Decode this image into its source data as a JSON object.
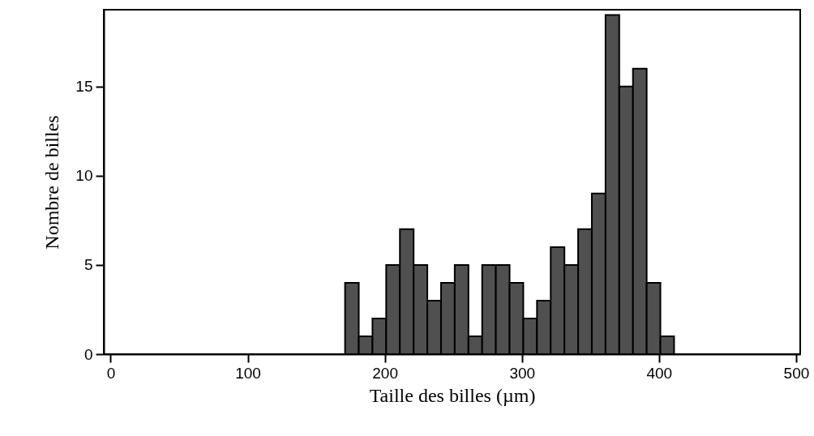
{
  "chart_data": {
    "type": "histogram",
    "xlabel": "Taille des billes (µm)",
    "ylabel": "Nombre de billes",
    "bins": [
      171,
      181,
      191,
      201,
      211,
      221,
      231,
      241,
      251,
      261,
      271,
      281,
      291,
      301,
      311,
      321,
      331,
      341,
      351,
      361,
      371,
      381,
      391,
      401,
      411
    ],
    "values": [
      4,
      1,
      2,
      5,
      7,
      5,
      3,
      4,
      5,
      1,
      5,
      5,
      4,
      2,
      3,
      6,
      5,
      7,
      9,
      19,
      15,
      16,
      4,
      1
    ],
    "color": "#505050",
    "xlim": [
      -5,
      503
    ],
    "xticks": [
      0,
      100,
      200,
      300,
      400,
      500
    ],
    "ylim": [
      0,
      19.3
    ],
    "yticks": [
      0,
      5,
      10,
      15
    ],
    "grid": false
  }
}
